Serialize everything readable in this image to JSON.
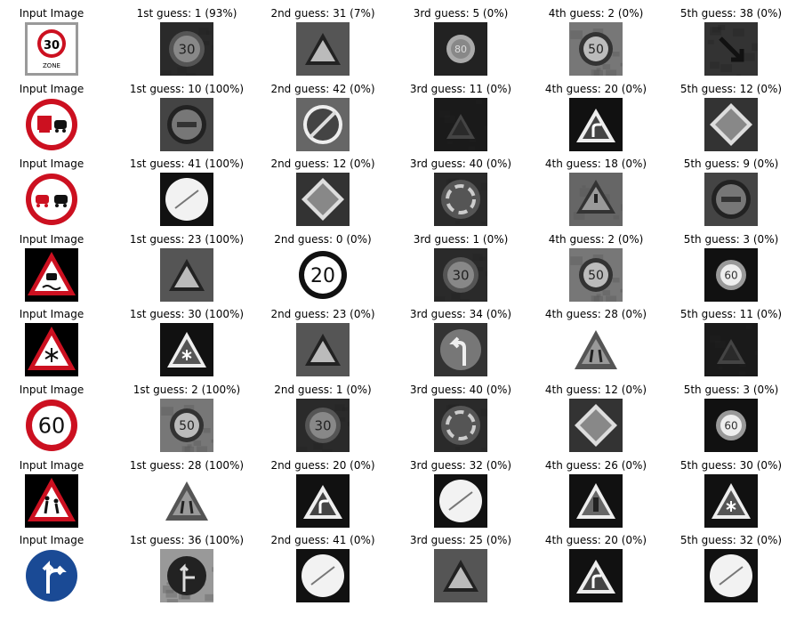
{
  "rows": [
    {
      "input": {
        "title": "Input Image",
        "sign": "speed-30-zone"
      },
      "guesses": [
        {
          "title": "1st guess: 1 (93%)",
          "sign": "speed-30-gray"
        },
        {
          "title": "2nd guess: 31 (7%)",
          "sign": "triangle-gray"
        },
        {
          "title": "3rd guess: 5 (0%)",
          "sign": "speed-80-gray"
        },
        {
          "title": "4th guess: 2 (0%)",
          "sign": "speed-50-gray"
        },
        {
          "title": "5th guess: 38 (0%)",
          "sign": "dark-arrow-gray"
        }
      ]
    },
    {
      "input": {
        "title": "Input Image",
        "sign": "no-trucks-passing"
      },
      "guesses": [
        {
          "title": "1st guess: 10 (100%)",
          "sign": "no-passing-gray"
        },
        {
          "title": "2nd guess: 42 (0%)",
          "sign": "end-no-passing-gray"
        },
        {
          "title": "3rd guess: 11 (0%)",
          "sign": "dark-triangle-gray"
        },
        {
          "title": "4th guess: 20 (0%)",
          "sign": "curve-right-gray"
        },
        {
          "title": "5th guess: 12 (0%)",
          "sign": "priority-road-gray"
        }
      ]
    },
    {
      "input": {
        "title": "Input Image",
        "sign": "no-passing"
      },
      "guesses": [
        {
          "title": "1st guess: 41 (100%)",
          "sign": "end-limits-gray"
        },
        {
          "title": "2nd guess: 12 (0%)",
          "sign": "priority-road-gray"
        },
        {
          "title": "3rd guess: 40 (0%)",
          "sign": "roundabout-gray"
        },
        {
          "title": "4th guess: 18 (0%)",
          "sign": "caution-gray"
        },
        {
          "title": "5th guess: 9 (0%)",
          "sign": "no-passing-gray"
        }
      ]
    },
    {
      "input": {
        "title": "Input Image",
        "sign": "slippery-road"
      },
      "guesses": [
        {
          "title": "1st guess: 23 (100%)",
          "sign": "triangle-gray"
        },
        {
          "title": "2nd guess: 0 (0%)",
          "sign": "speed-20-gray"
        },
        {
          "title": "3rd guess: 1 (0%)",
          "sign": "speed-30-gray"
        },
        {
          "title": "4th guess: 2 (0%)",
          "sign": "speed-50-gray"
        },
        {
          "title": "5th guess: 3 (0%)",
          "sign": "speed-60-gray"
        }
      ]
    },
    {
      "input": {
        "title": "Input Image",
        "sign": "snow-ice"
      },
      "guesses": [
        {
          "title": "1st guess: 30 (100%)",
          "sign": "snow-gray"
        },
        {
          "title": "2nd guess: 23 (0%)",
          "sign": "triangle-gray"
        },
        {
          "title": "3rd guess: 34 (0%)",
          "sign": "turn-left-gray"
        },
        {
          "title": "4th guess: 28 (0%)",
          "sign": "children-gray"
        },
        {
          "title": "5th guess: 11 (0%)",
          "sign": "dark-triangle-gray"
        }
      ]
    },
    {
      "input": {
        "title": "Input Image",
        "sign": "speed-60"
      },
      "guesses": [
        {
          "title": "1st guess: 2 (100%)",
          "sign": "speed-50-gray"
        },
        {
          "title": "2nd guess: 1 (0%)",
          "sign": "speed-30-gray"
        },
        {
          "title": "3rd guess: 40 (0%)",
          "sign": "roundabout-gray"
        },
        {
          "title": "4th guess: 12 (0%)",
          "sign": "priority-road-gray"
        },
        {
          "title": "5th guess: 3 (0%)",
          "sign": "speed-60-gray"
        }
      ]
    },
    {
      "input": {
        "title": "Input Image",
        "sign": "children-crossing"
      },
      "guesses": [
        {
          "title": "1st guess: 28 (100%)",
          "sign": "children-gray"
        },
        {
          "title": "2nd guess: 20 (0%)",
          "sign": "curve-right-gray"
        },
        {
          "title": "3rd guess: 32 (0%)",
          "sign": "end-limits-gray"
        },
        {
          "title": "4th guess: 26 (0%)",
          "sign": "traffic-signals-gray"
        },
        {
          "title": "5th guess: 30 (0%)",
          "sign": "snow-gray"
        }
      ]
    },
    {
      "input": {
        "title": "Input Image",
        "sign": "straight-or-right"
      },
      "guesses": [
        {
          "title": "1st guess: 36 (100%)",
          "sign": "straight-right-gray"
        },
        {
          "title": "2nd guess: 41 (0%)",
          "sign": "end-limits-gray"
        },
        {
          "title": "3rd guess: 25 (0%)",
          "sign": "triangle-gray"
        },
        {
          "title": "4th guess: 20 (0%)",
          "sign": "curve-right-gray"
        },
        {
          "title": "5th guess: 32 (0%)",
          "sign": "end-limits-gray"
        }
      ]
    }
  ]
}
